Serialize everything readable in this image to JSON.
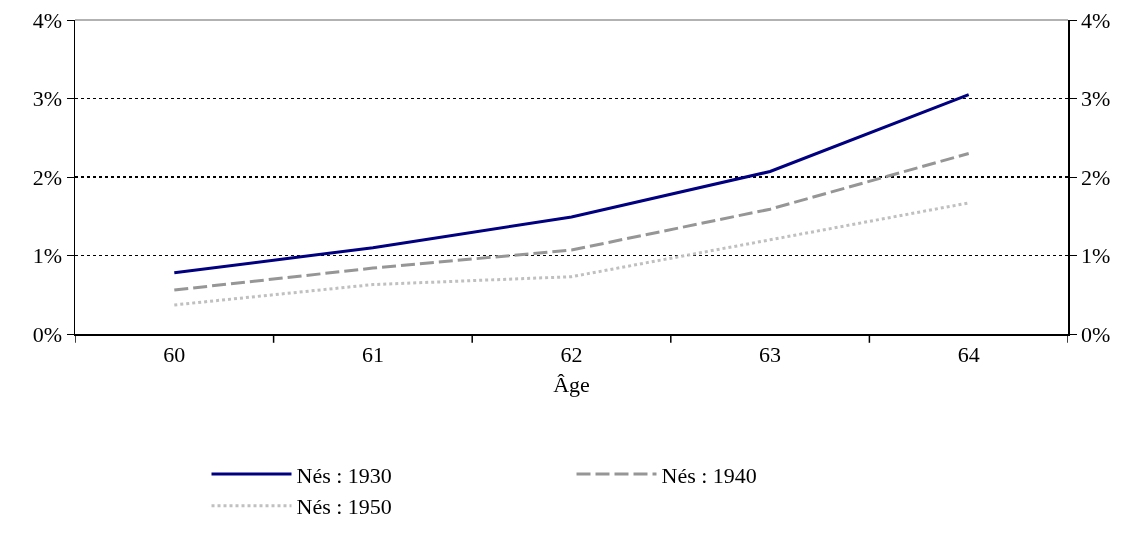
{
  "chart_data": {
    "type": "line",
    "xlabel": "Âge",
    "categories": [
      "60",
      "61",
      "62",
      "63",
      "64"
    ],
    "series": [
      {
        "name": "Nés : 1930",
        "color": "#000080",
        "line_style": "solid",
        "values": [
          0.78,
          1.1,
          1.49,
          2.07,
          3.05
        ]
      },
      {
        "name": "Nés : 1940",
        "color": "#969696",
        "line_style": "dashed",
        "values": [
          0.56,
          0.84,
          1.07,
          1.59,
          2.3
        ]
      },
      {
        "name": "Nés : 1950",
        "color": "#c0c0c0",
        "line_style": "dotted",
        "values": [
          0.37,
          0.63,
          0.73,
          1.2,
          1.67
        ]
      }
    ],
    "ylim": [
      0,
      4
    ],
    "yticks": [
      {
        "value": 0,
        "label": "0%"
      },
      {
        "value": 1,
        "label": "1%"
      },
      {
        "value": 2,
        "label": "2%"
      },
      {
        "value": 3,
        "label": "3%"
      },
      {
        "value": 4,
        "label": "4%"
      }
    ],
    "y2lim": [
      0,
      4
    ],
    "y2ticks": [
      {
        "value": 0,
        "label": "0%"
      },
      {
        "value": 1,
        "label": "1%"
      },
      {
        "value": 2,
        "label": "2%"
      },
      {
        "value": 3,
        "label": "3%"
      },
      {
        "value": 4,
        "label": "4%"
      }
    ],
    "grid": "y",
    "legend": "bottom",
    "marker": "none"
  }
}
